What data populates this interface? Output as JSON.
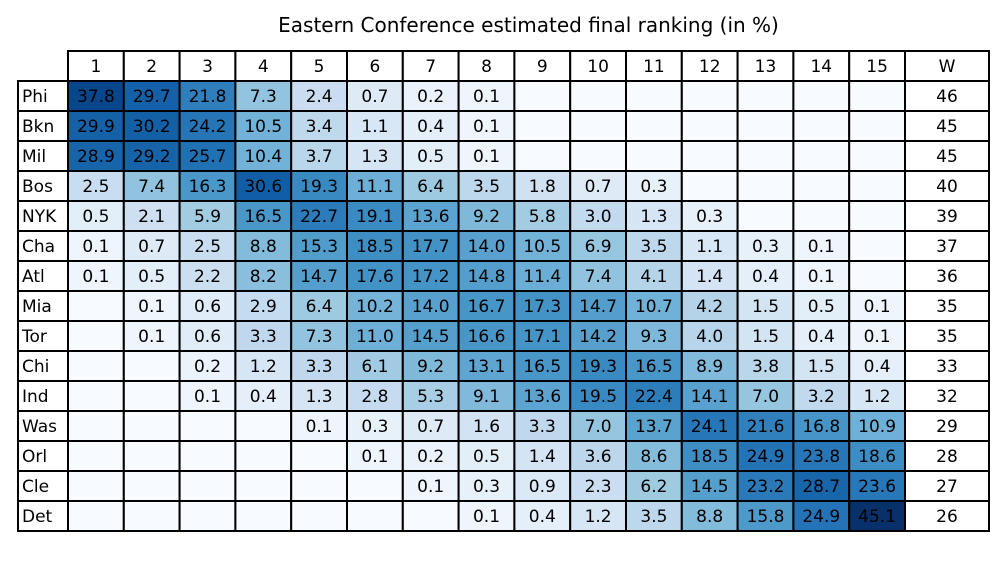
{
  "chart_data": {
    "type": "heatmap",
    "title": "Eastern Conference estimated final ranking (in %)",
    "colormap": "Blues",
    "value_max": 45.1,
    "columns": [
      "1",
      "2",
      "3",
      "4",
      "5",
      "6",
      "7",
      "8",
      "9",
      "10",
      "11",
      "12",
      "13",
      "14",
      "15"
    ],
    "wins_header": "W",
    "rows": [
      {
        "team": "Phi",
        "values": [
          "37.8",
          "29.7",
          "21.8",
          "7.3",
          "2.4",
          "0.7",
          "0.2",
          "0.1",
          "",
          "",
          "",
          "",
          "",
          "",
          ""
        ],
        "wins": "46"
      },
      {
        "team": "Bkn",
        "values": [
          "29.9",
          "30.2",
          "24.2",
          "10.5",
          "3.4",
          "1.1",
          "0.4",
          "0.1",
          "",
          "",
          "",
          "",
          "",
          "",
          ""
        ],
        "wins": "45"
      },
      {
        "team": "Mil",
        "values": [
          "28.9",
          "29.2",
          "25.7",
          "10.4",
          "3.7",
          "1.3",
          "0.5",
          "0.1",
          "",
          "",
          "",
          "",
          "",
          "",
          ""
        ],
        "wins": "45"
      },
      {
        "team": "Bos",
        "values": [
          "2.5",
          "7.4",
          "16.3",
          "30.6",
          "19.3",
          "11.1",
          "6.4",
          "3.5",
          "1.8",
          "0.7",
          "0.3",
          "",
          "",
          "",
          ""
        ],
        "wins": "40"
      },
      {
        "team": "NYK",
        "values": [
          "0.5",
          "2.1",
          "5.9",
          "16.5",
          "22.7",
          "19.1",
          "13.6",
          "9.2",
          "5.8",
          "3.0",
          "1.3",
          "0.3",
          "",
          "",
          ""
        ],
        "wins": "39"
      },
      {
        "team": "Cha",
        "values": [
          "0.1",
          "0.7",
          "2.5",
          "8.8",
          "15.3",
          "18.5",
          "17.7",
          "14.0",
          "10.5",
          "6.9",
          "3.5",
          "1.1",
          "0.3",
          "0.1",
          ""
        ],
        "wins": "37"
      },
      {
        "team": "Atl",
        "values": [
          "0.1",
          "0.5",
          "2.2",
          "8.2",
          "14.7",
          "17.6",
          "17.2",
          "14.8",
          "11.4",
          "7.4",
          "4.1",
          "1.4",
          "0.4",
          "0.1",
          ""
        ],
        "wins": "36"
      },
      {
        "team": "Mia",
        "values": [
          "",
          "0.1",
          "0.6",
          "2.9",
          "6.4",
          "10.2",
          "14.0",
          "16.7",
          "17.3",
          "14.7",
          "10.7",
          "4.2",
          "1.5",
          "0.5",
          "0.1"
        ],
        "wins": "35"
      },
      {
        "team": "Tor",
        "values": [
          "",
          "0.1",
          "0.6",
          "3.3",
          "7.3",
          "11.0",
          "14.5",
          "16.6",
          "17.1",
          "14.2",
          "9.3",
          "4.0",
          "1.5",
          "0.4",
          "0.1"
        ],
        "wins": "35"
      },
      {
        "team": "Chi",
        "values": [
          "",
          "",
          "0.2",
          "1.2",
          "3.3",
          "6.1",
          "9.2",
          "13.1",
          "16.5",
          "19.3",
          "16.5",
          "8.9",
          "3.8",
          "1.5",
          "0.4"
        ],
        "wins": "33"
      },
      {
        "team": "Ind",
        "values": [
          "",
          "",
          "0.1",
          "0.4",
          "1.3",
          "2.8",
          "5.3",
          "9.1",
          "13.6",
          "19.5",
          "22.4",
          "14.1",
          "7.0",
          "3.2",
          "1.2"
        ],
        "wins": "32"
      },
      {
        "team": "Was",
        "values": [
          "",
          "",
          "",
          "",
          "0.1",
          "0.3",
          "0.7",
          "1.6",
          "3.3",
          "7.0",
          "13.7",
          "24.1",
          "21.6",
          "16.8",
          "10.9"
        ],
        "wins": "29"
      },
      {
        "team": "Orl",
        "values": [
          "",
          "",
          "",
          "",
          "",
          "0.1",
          "0.2",
          "0.5",
          "1.4",
          "3.6",
          "8.6",
          "18.5",
          "24.9",
          "23.8",
          "18.6"
        ],
        "wins": "28"
      },
      {
        "team": "Cle",
        "values": [
          "",
          "",
          "",
          "",
          "",
          "",
          "0.1",
          "0.3",
          "0.9",
          "2.3",
          "6.2",
          "14.5",
          "23.2",
          "28.7",
          "23.6"
        ],
        "wins": "27"
      },
      {
        "team": "Det",
        "values": [
          "",
          "",
          "",
          "",
          "",
          "",
          "",
          "0.1",
          "0.4",
          "1.2",
          "3.5",
          "8.8",
          "15.8",
          "24.9",
          "45.1"
        ],
        "wins": "26"
      }
    ]
  }
}
